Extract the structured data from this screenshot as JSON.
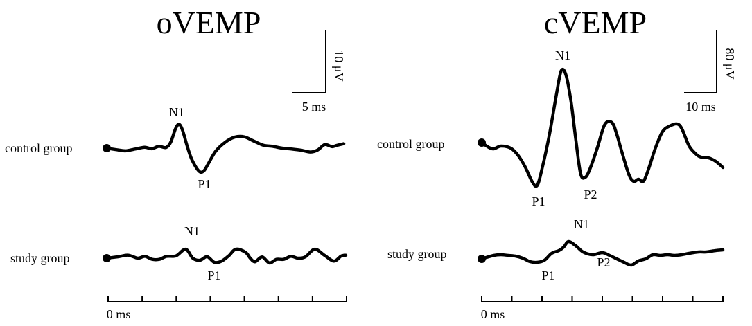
{
  "panels": [
    {
      "title": "oVEMP",
      "scale_bar": {
        "voltage_label": "10 μV",
        "time_label": "5 ms"
      },
      "time_axis": {
        "start_label": "0 ms",
        "tick_count": 7
      },
      "groups": [
        {
          "label": "control group",
          "peaks": [
            {
              "label": "N1"
            },
            {
              "label": "P1"
            }
          ],
          "waveform": [
            [
              0,
              0
            ],
            [
              0.04,
              -0.5
            ],
            [
              0.08,
              -0.9
            ],
            [
              0.12,
              -0.3
            ],
            [
              0.16,
              0.3
            ],
            [
              0.19,
              -0.2
            ],
            [
              0.22,
              0.6
            ],
            [
              0.25,
              0.2
            ],
            [
              0.27,
              2.0
            ],
            [
              0.29,
              6.5
            ],
            [
              0.305,
              8.0
            ],
            [
              0.32,
              6.0
            ],
            [
              0.34,
              0.5
            ],
            [
              0.36,
              -4.0
            ],
            [
              0.39,
              -7.8
            ],
            [
              0.41,
              -7.6
            ],
            [
              0.43,
              -5.0
            ],
            [
              0.46,
              -1.0
            ],
            [
              0.5,
              2.0
            ],
            [
              0.54,
              3.7
            ],
            [
              0.58,
              3.8
            ],
            [
              0.62,
              2.4
            ],
            [
              0.66,
              1.0
            ],
            [
              0.7,
              0.6
            ],
            [
              0.74,
              0.0
            ],
            [
              0.78,
              -0.3
            ],
            [
              0.82,
              -0.7
            ],
            [
              0.86,
              -1.3
            ],
            [
              0.89,
              -0.6
            ],
            [
              0.92,
              1.2
            ],
            [
              0.95,
              0.5
            ],
            [
              0.97,
              0.9
            ],
            [
              1.0,
              1.5
            ]
          ]
        },
        {
          "label": "study group",
          "peaks": [
            {
              "label": "N1"
            },
            {
              "label": "P1"
            }
          ],
          "waveform": [
            [
              0,
              0
            ],
            [
              0.05,
              0.5
            ],
            [
              0.09,
              1.0
            ],
            [
              0.13,
              0.0
            ],
            [
              0.16,
              0.6
            ],
            [
              0.19,
              -0.4
            ],
            [
              0.22,
              -0.4
            ],
            [
              0.25,
              0.6
            ],
            [
              0.29,
              0.8
            ],
            [
              0.33,
              3.0
            ],
            [
              0.36,
              0.0
            ],
            [
              0.39,
              -0.7
            ],
            [
              0.42,
              0.5
            ],
            [
              0.45,
              -1.4
            ],
            [
              0.48,
              -1.0
            ],
            [
              0.51,
              0.8
            ],
            [
              0.54,
              3.0
            ],
            [
              0.58,
              2.0
            ],
            [
              0.6,
              0.0
            ],
            [
              0.62,
              -1.2
            ],
            [
              0.65,
              0.4
            ],
            [
              0.68,
              -1.6
            ],
            [
              0.71,
              -0.4
            ],
            [
              0.74,
              -0.4
            ],
            [
              0.77,
              0.6
            ],
            [
              0.8,
              0.0
            ],
            [
              0.83,
              0.4
            ],
            [
              0.87,
              3.0
            ],
            [
              0.91,
              1.0
            ],
            [
              0.95,
              -1.0
            ],
            [
              0.98,
              0.7
            ],
            [
              1.0,
              1.0
            ]
          ]
        }
      ]
    },
    {
      "title": "cVEMP",
      "scale_bar": {
        "voltage_label": "80 μV",
        "time_label": "10 ms"
      },
      "time_axis": {
        "start_label": "0 ms",
        "tick_count": 8
      },
      "groups": [
        {
          "label": "control group",
          "peaks": [
            {
              "label": "N1"
            },
            {
              "label": "P1"
            },
            {
              "label": "P2"
            }
          ],
          "waveform": [
            [
              0,
              0
            ],
            [
              0.03,
              -7
            ],
            [
              0.05,
              -9
            ],
            [
              0.08,
              -5
            ],
            [
              0.12,
              -8
            ],
            [
              0.15,
              -18
            ],
            [
              0.18,
              -35
            ],
            [
              0.21,
              -57
            ],
            [
              0.23,
              -62
            ],
            [
              0.25,
              -38
            ],
            [
              0.28,
              10
            ],
            [
              0.31,
              70
            ],
            [
              0.33,
              104
            ],
            [
              0.35,
              97
            ],
            [
              0.37,
              60
            ],
            [
              0.39,
              5
            ],
            [
              0.41,
              -45
            ],
            [
              0.43,
              -50
            ],
            [
              0.45,
              -37
            ],
            [
              0.48,
              -7
            ],
            [
              0.51,
              26
            ],
            [
              0.54,
              29
            ],
            [
              0.56,
              12
            ],
            [
              0.58,
              -12
            ],
            [
              0.61,
              -46
            ],
            [
              0.63,
              -56
            ],
            [
              0.65,
              -53
            ],
            [
              0.67,
              -56
            ],
            [
              0.69,
              -40
            ],
            [
              0.72,
              -8
            ],
            [
              0.75,
              16
            ],
            [
              0.78,
              24
            ],
            [
              0.81,
              27
            ],
            [
              0.83,
              20
            ],
            [
              0.86,
              -5
            ],
            [
              0.89,
              -17
            ],
            [
              0.91,
              -21
            ],
            [
              0.94,
              -22
            ],
            [
              0.97,
              -27
            ],
            [
              1.0,
              -36
            ]
          ]
        },
        {
          "label": "study group",
          "peaks": [
            {
              "label": "N1"
            },
            {
              "label": "P1"
            },
            {
              "label": "P2"
            }
          ],
          "waveform": [
            [
              0,
              0
            ],
            [
              0.05,
              5
            ],
            [
              0.08,
              6
            ],
            [
              0.11,
              5
            ],
            [
              0.14,
              4
            ],
            [
              0.17,
              1
            ],
            [
              0.2,
              -4
            ],
            [
              0.23,
              -5
            ],
            [
              0.26,
              -2
            ],
            [
              0.29,
              8
            ],
            [
              0.32,
              12
            ],
            [
              0.34,
              17
            ],
            [
              0.36,
              25
            ],
            [
              0.39,
              19
            ],
            [
              0.42,
              10
            ],
            [
              0.46,
              6
            ],
            [
              0.5,
              9
            ],
            [
              0.53,
              5
            ],
            [
              0.56,
              0
            ],
            [
              0.59,
              -5
            ],
            [
              0.62,
              -9
            ],
            [
              0.65,
              -3
            ],
            [
              0.68,
              0
            ],
            [
              0.71,
              6
            ],
            [
              0.74,
              5
            ],
            [
              0.77,
              6
            ],
            [
              0.8,
              5
            ],
            [
              0.83,
              6
            ],
            [
              0.86,
              8
            ],
            [
              0.9,
              10
            ],
            [
              0.93,
              10
            ],
            [
              0.97,
              12
            ],
            [
              1.0,
              13
            ]
          ]
        }
      ]
    }
  ],
  "chart_data": [
    {
      "type": "line",
      "title": "oVEMP",
      "xlabel": "",
      "ylabel": "",
      "scale_bars": {
        "y": "10 μV",
        "x": "5 ms"
      },
      "series": [
        {
          "name": "control group",
          "peaks": [
            "N1",
            "P1"
          ]
        },
        {
          "name": "study group",
          "peaks": [
            "N1",
            "P1"
          ]
        }
      ]
    },
    {
      "type": "line",
      "title": "cVEMP",
      "xlabel": "",
      "ylabel": "",
      "scale_bars": {
        "y": "80 μV",
        "x": "10 ms"
      },
      "series": [
        {
          "name": "control group",
          "peaks": [
            "N1",
            "P1",
            "P2"
          ]
        },
        {
          "name": "study group",
          "peaks": [
            "N1",
            "P1",
            "P2"
          ]
        }
      ]
    }
  ],
  "style": {
    "trace_color": "#000000",
    "background": "#ffffff"
  }
}
